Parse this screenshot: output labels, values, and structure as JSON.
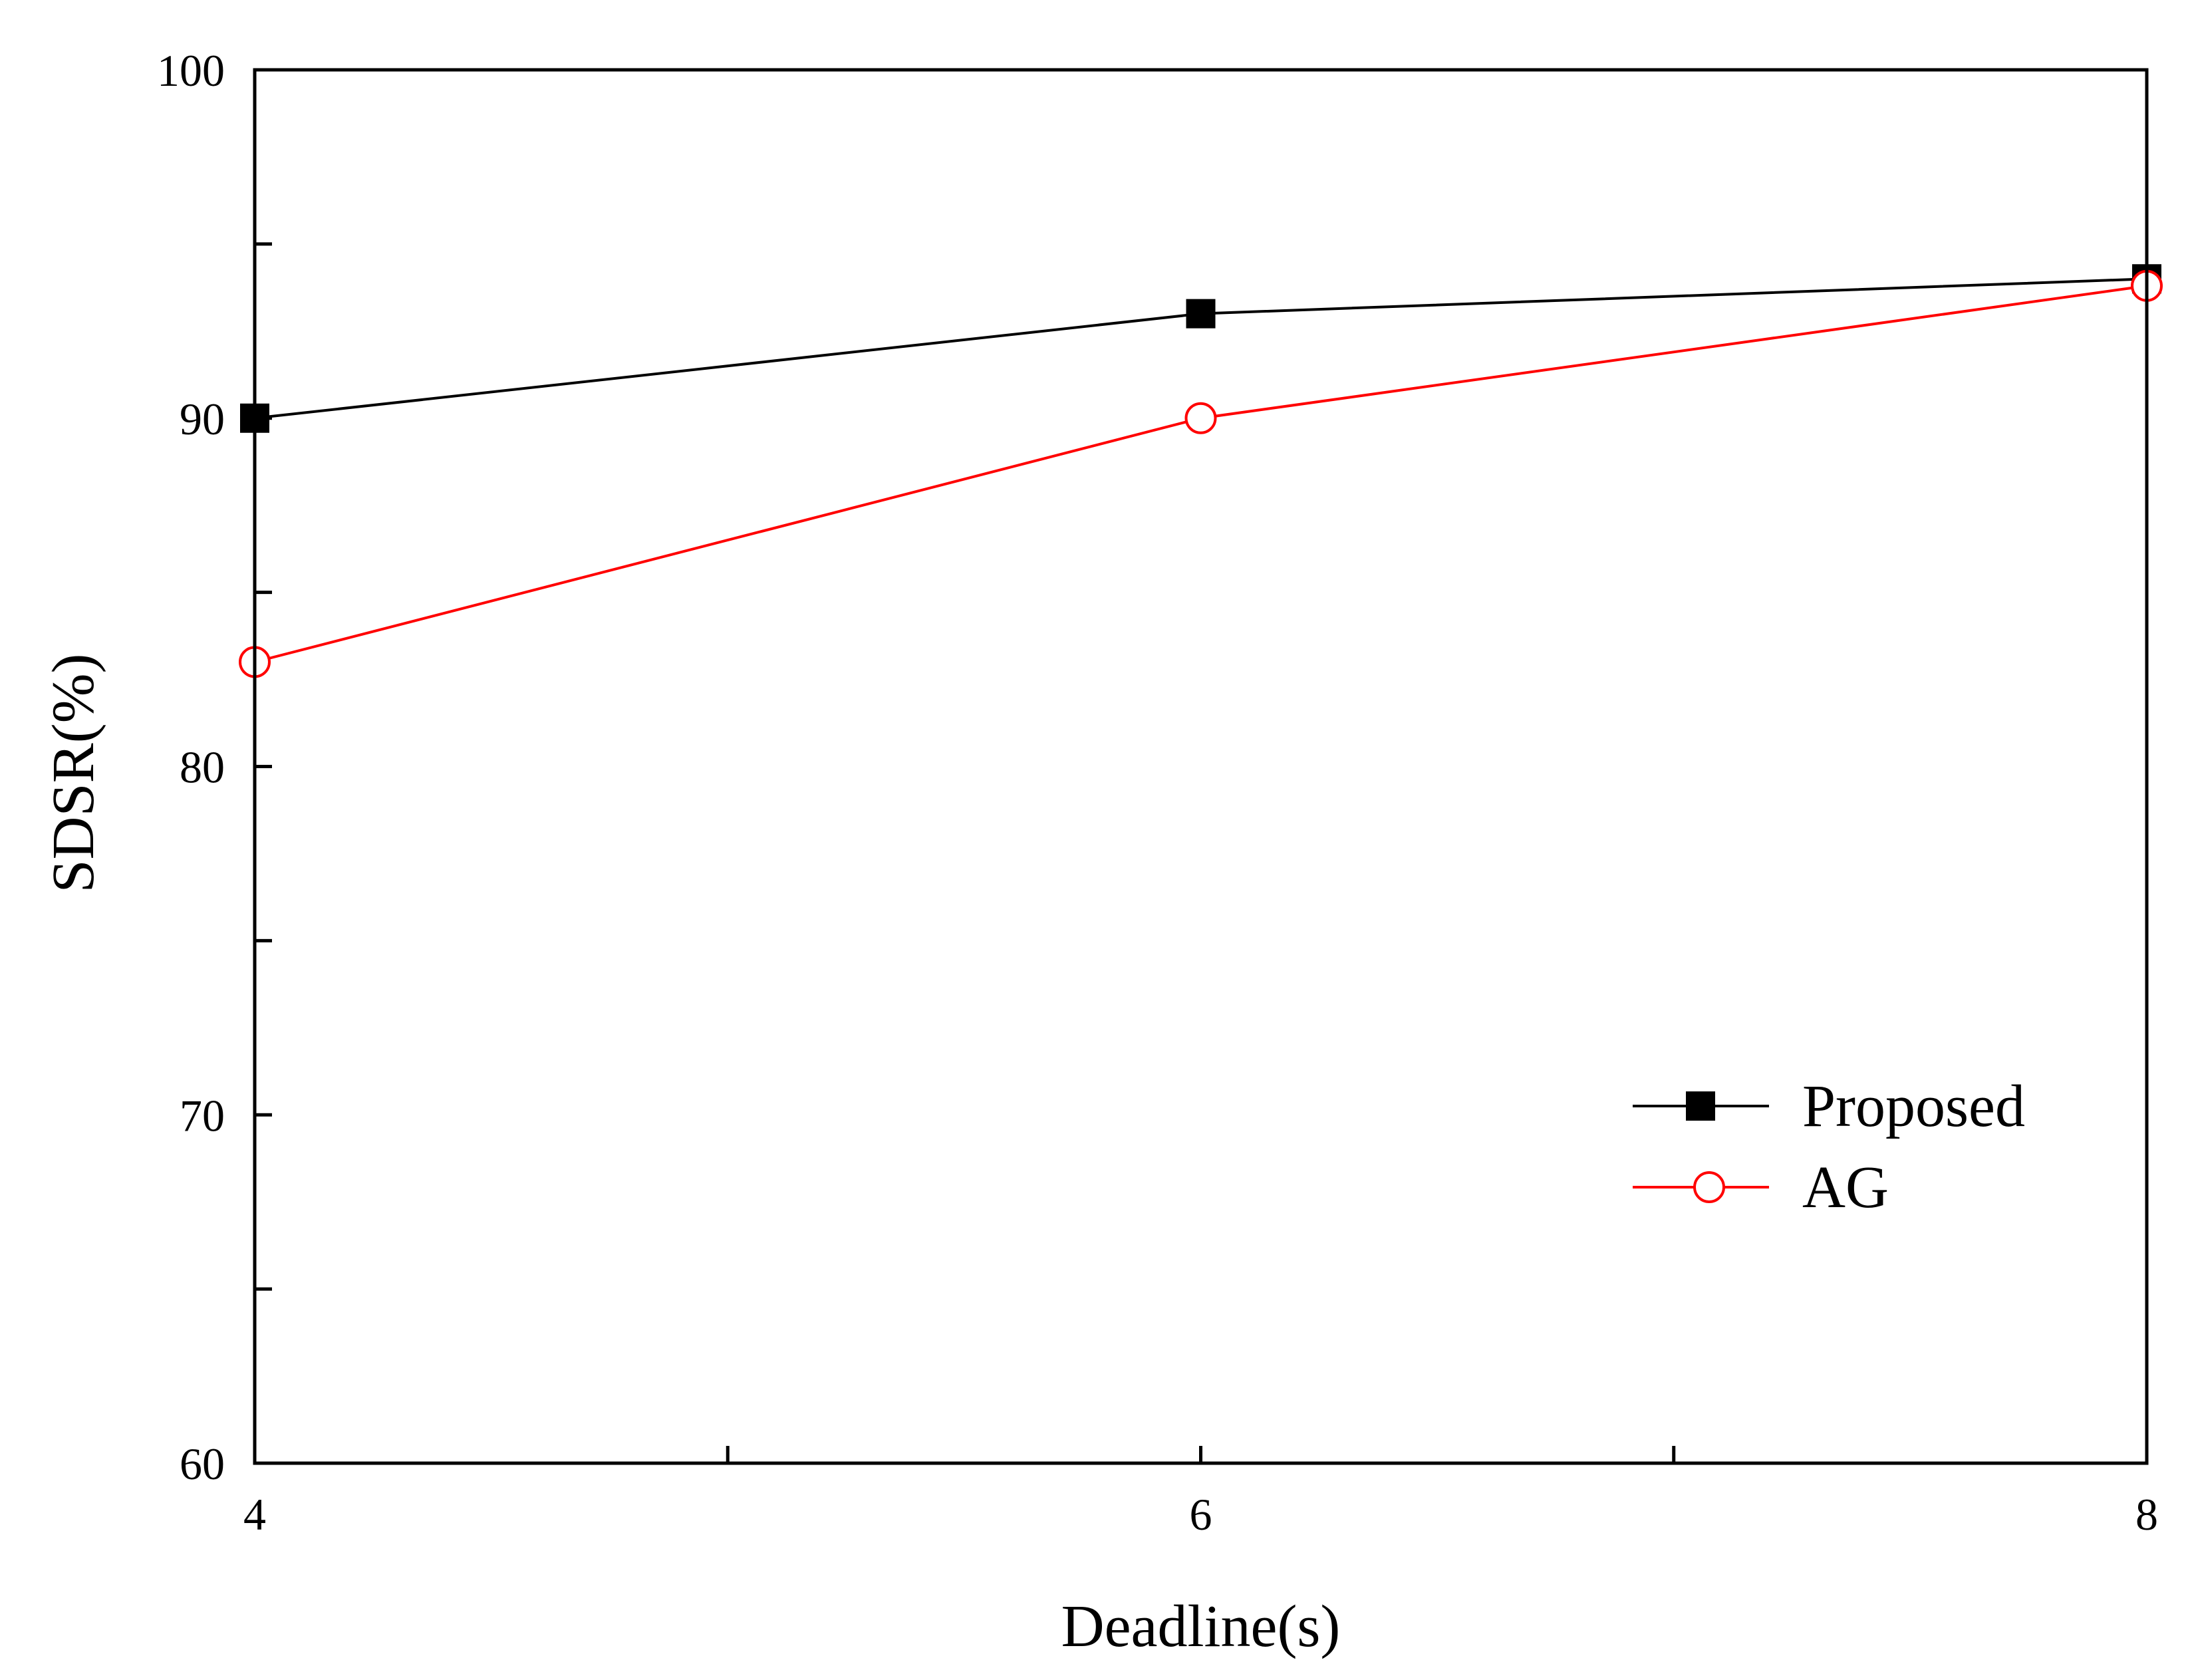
{
  "chart_data": {
    "type": "line",
    "title": "",
    "xlabel": "Deadline(s)",
    "ylabel": "SDSR(%)",
    "x": [
      4,
      6,
      8
    ],
    "xlim": [
      4,
      8
    ],
    "ylim": [
      60,
      100
    ],
    "x_major_ticks": [
      4,
      6,
      8
    ],
    "x_minor_ticks": [
      5,
      7
    ],
    "y_major_ticks": [
      60,
      70,
      80,
      90,
      100
    ],
    "y_minor_ticks": [
      65,
      75,
      85,
      95
    ],
    "x_tick_labels": [
      "4",
      "6",
      "8"
    ],
    "y_tick_labels": [
      "60",
      "70",
      "80",
      "90",
      "100"
    ],
    "grid": false,
    "legend_position": "lower-right",
    "series": [
      {
        "name": "Proposed",
        "values": [
          90,
          93,
          94
        ],
        "color": "#000000",
        "marker": "filled-square"
      },
      {
        "name": "AG",
        "values": [
          83,
          90,
          93.8
        ],
        "color": "#ff0000",
        "marker": "open-circle"
      }
    ]
  }
}
